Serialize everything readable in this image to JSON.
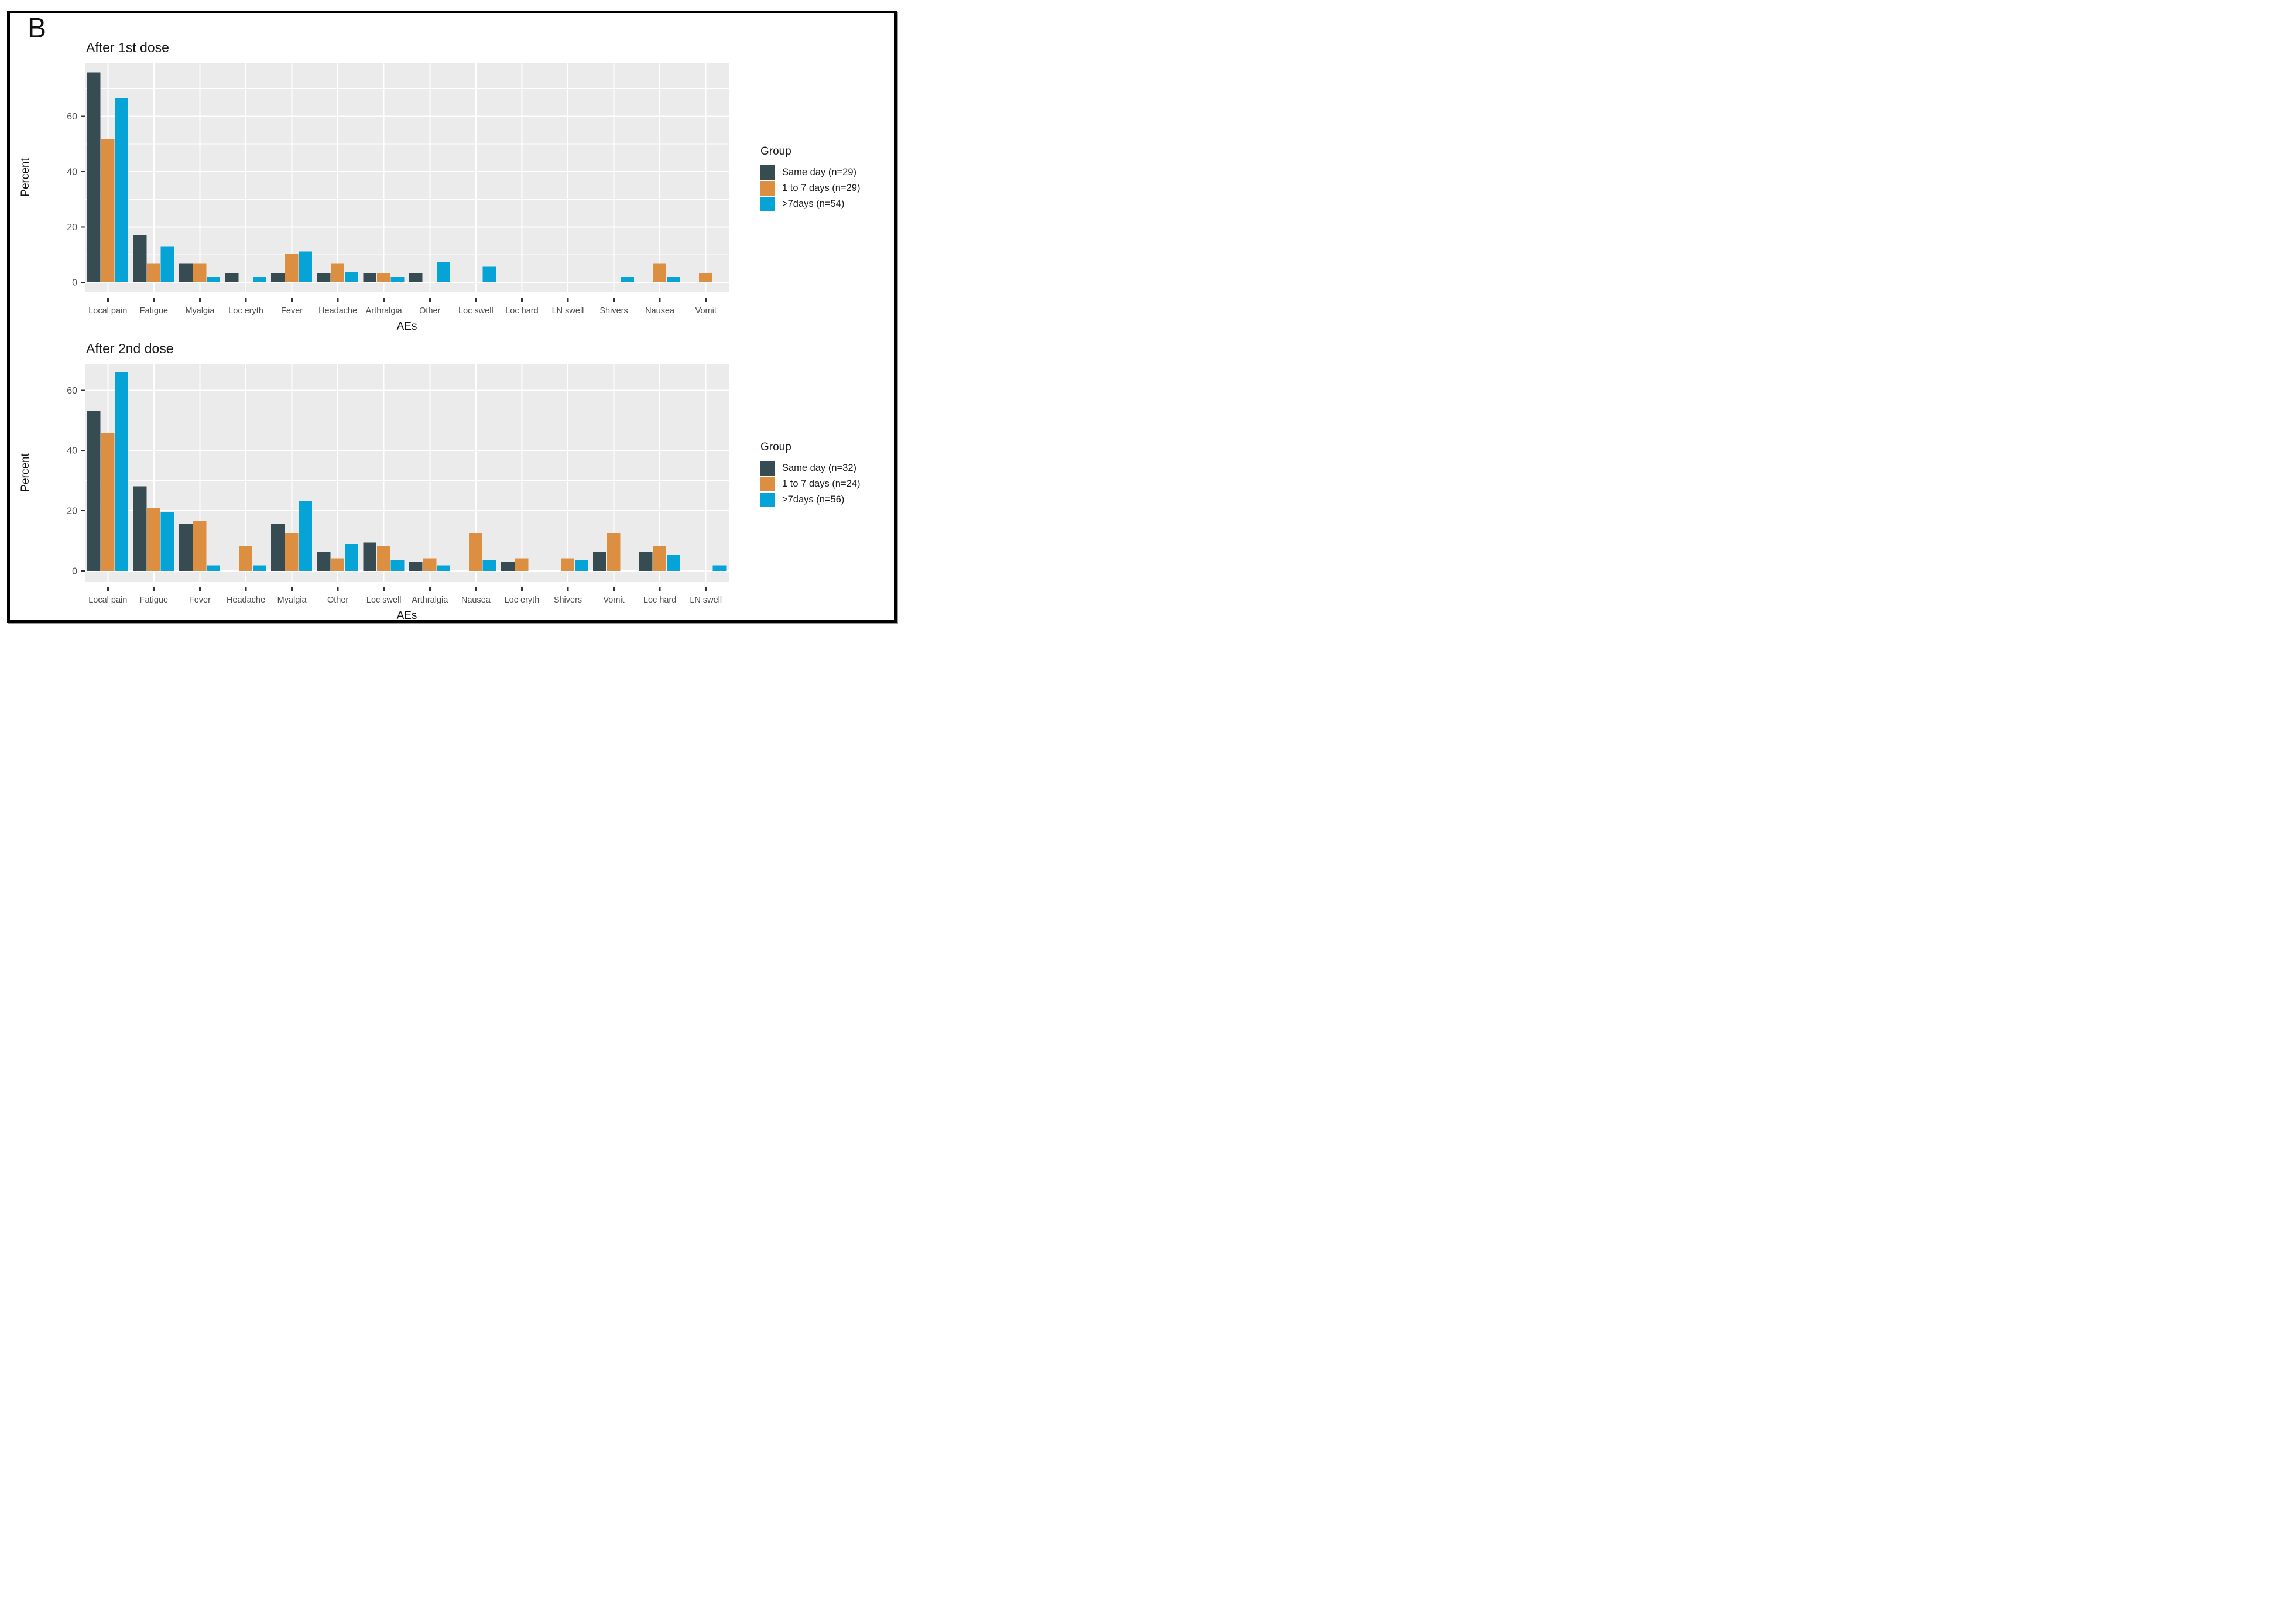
{
  "figure_label": "B",
  "colors": {
    "same_day": "#374B52",
    "one_to_seven": "#DD8F41",
    "gt_seven": "#06A3D7",
    "panel_background": "#EBEBEB",
    "gridline": "#FFFFFF",
    "axis_text": "#4D4D4D",
    "tick_mark": "#333333",
    "frame": "#000000"
  },
  "chart_data": [
    {
      "type": "bar",
      "title": "After 1st dose",
      "xlabel": "AEs",
      "ylabel": "Percent",
      "legend_title": "Group",
      "legend_position": "right",
      "grid": true,
      "yticks": [
        0,
        20,
        40,
        60
      ],
      "minor_gridlines": [
        10,
        30,
        50,
        70
      ],
      "y_domain": [
        -3.6,
        79.4
      ],
      "categories": [
        "Local pain",
        "Fatigue",
        "Myalgia",
        "Loc eryth",
        "Fever",
        "Headache",
        "Arthralgia",
        "Other",
        "Loc swell",
        "Loc hard",
        "LN swell",
        "Shivers",
        "Nausea",
        "Vomit"
      ],
      "series": [
        {
          "name": "Same day (n=29)",
          "color": "#374B52",
          "values": [
            75.9,
            17.2,
            6.9,
            3.4,
            3.4,
            3.4,
            3.4,
            3.4,
            0,
            0,
            0,
            0,
            0,
            0
          ]
        },
        {
          "name": "1 to 7 days (n=29)",
          "color": "#DD8F41",
          "values": [
            51.7,
            6.9,
            6.9,
            0,
            10.3,
            6.9,
            3.4,
            0,
            0,
            0,
            0,
            0,
            6.9,
            3.4
          ]
        },
        {
          "name": ">7days (n=54)",
          "color": "#06A3D7",
          "values": [
            66.7,
            13.0,
            1.9,
            1.9,
            11.1,
            3.7,
            1.9,
            7.4,
            5.6,
            0,
            0,
            1.9,
            1.9,
            0
          ]
        }
      ]
    },
    {
      "type": "bar",
      "title": "After 2nd dose",
      "xlabel": "AEs",
      "ylabel": "Percent",
      "legend_title": "Group",
      "legend_position": "right",
      "grid": true,
      "yticks": [
        0,
        20,
        40,
        60
      ],
      "minor_gridlines": [
        10,
        30,
        50
      ],
      "y_domain": [
        -3.5,
        68.8
      ],
      "categories": [
        "Local pain",
        "Fatigue",
        "Fever",
        "Headache",
        "Myalgia",
        "Other",
        "Loc swell",
        "Arthralgia",
        "Nausea",
        "Loc eryth",
        "Shivers",
        "Vomit",
        "Loc hard",
        "LN swell"
      ],
      "series": [
        {
          "name": "Same day (n=32)",
          "color": "#374B52",
          "values": [
            53.1,
            28.1,
            15.6,
            0,
            15.6,
            6.3,
            9.4,
            3.1,
            0,
            3.1,
            0,
            6.3,
            6.3,
            0
          ]
        },
        {
          "name": "1 to 7 days (n=24)",
          "color": "#DD8F41",
          "values": [
            45.8,
            20.8,
            16.7,
            8.3,
            12.5,
            4.2,
            8.3,
            4.2,
            12.5,
            4.2,
            4.2,
            12.5,
            8.3,
            0
          ]
        },
        {
          "name": ">7days (n=56)",
          "color": "#06A3D7",
          "values": [
            66.1,
            19.6,
            1.8,
            1.8,
            23.2,
            8.9,
            3.6,
            1.8,
            3.6,
            0,
            3.6,
            0,
            5.4,
            1.8
          ]
        }
      ]
    }
  ]
}
